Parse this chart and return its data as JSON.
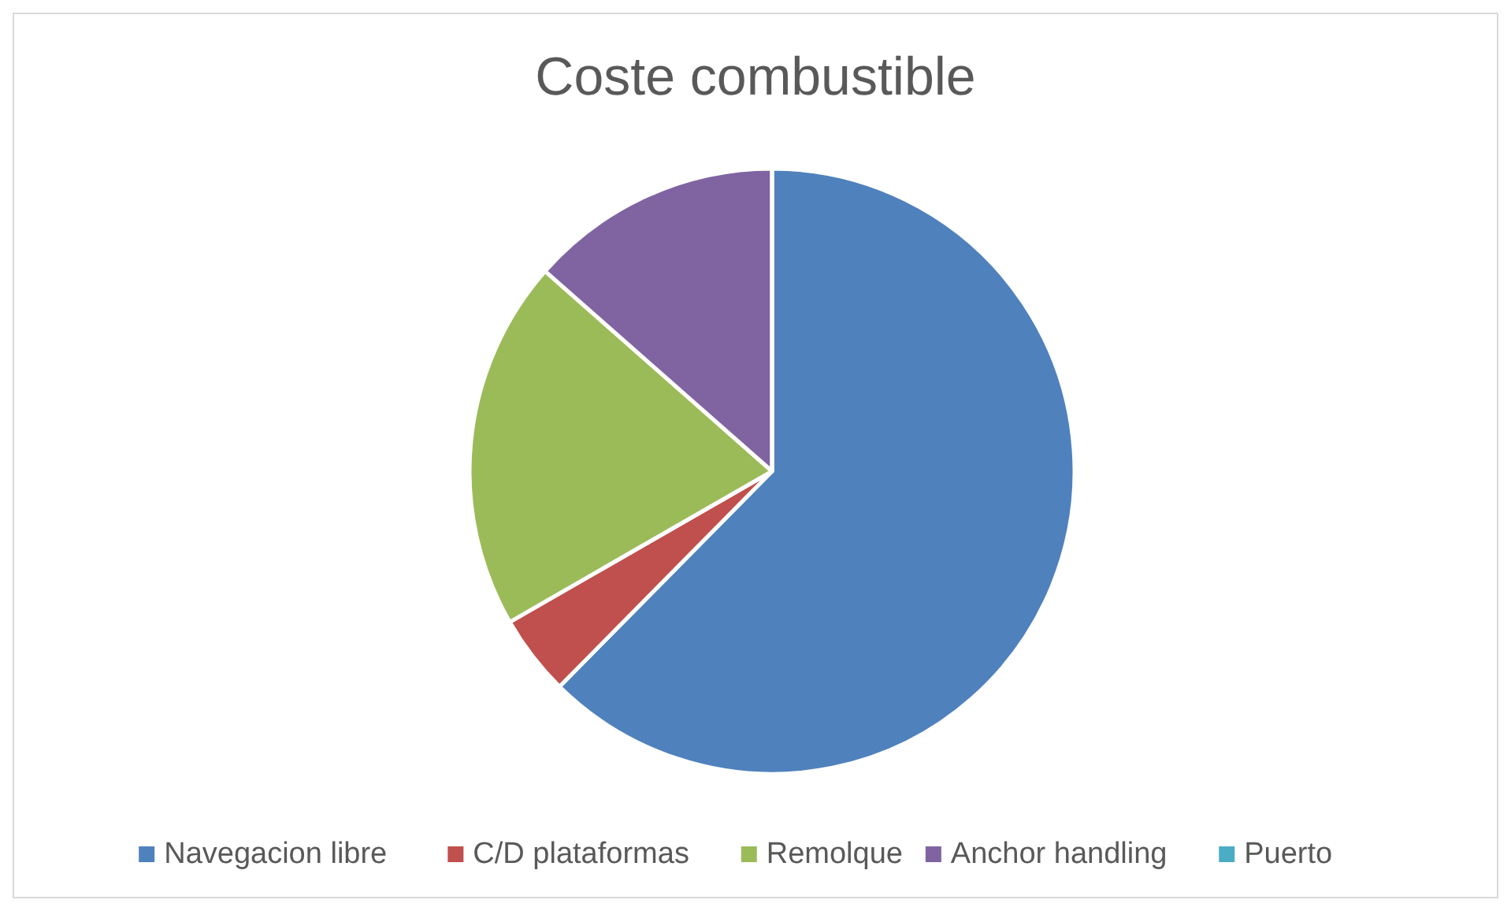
{
  "chart_data": {
    "type": "pie",
    "title": "Coste combustible",
    "categories": [
      "Navegacion libre",
      "C/D plataformas",
      "Remolque",
      "Anchor handling",
      "Puerto"
    ],
    "values": [
      62.4,
      4.3,
      19.8,
      13.5,
      0
    ],
    "colors": [
      "#4f81bd",
      "#c0504d",
      "#9bbb59",
      "#8064a2",
      "#4bacc6"
    ],
    "legend": "bottom"
  }
}
